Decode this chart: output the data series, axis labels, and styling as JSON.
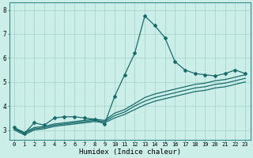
{
  "xlabel": "Humidex (Indice chaleur)",
  "bg_color": "#cceee8",
  "line_color": "#1a6b6b",
  "grid_color": "#aad5d0",
  "xlim": [
    -0.5,
    23.5
  ],
  "ylim": [
    2.6,
    8.3
  ],
  "xticks": [
    0,
    1,
    2,
    3,
    4,
    5,
    6,
    7,
    8,
    9,
    10,
    11,
    12,
    13,
    14,
    15,
    16,
    17,
    18,
    19,
    20,
    21,
    22,
    23
  ],
  "yticks": [
    3,
    4,
    5,
    6,
    7,
    8
  ],
  "series1_x": [
    0,
    1,
    2,
    3,
    4,
    5,
    6,
    7,
    8,
    9,
    10,
    11,
    12,
    13,
    14,
    15,
    16,
    17,
    18,
    19,
    20,
    21,
    22,
    23
  ],
  "series1_y": [
    3.1,
    2.85,
    3.3,
    3.2,
    3.5,
    3.55,
    3.55,
    3.5,
    3.45,
    3.25,
    4.4,
    5.3,
    6.2,
    7.75,
    7.35,
    6.85,
    5.85,
    5.5,
    5.35,
    5.3,
    5.25,
    5.35,
    5.5,
    5.35
  ],
  "series2_x": [
    0,
    1,
    2,
    3,
    4,
    5,
    6,
    7,
    8,
    9,
    10,
    11,
    12,
    13,
    14,
    15,
    16,
    17,
    18,
    19,
    20,
    21,
    22,
    23
  ],
  "series2_y": [
    3.1,
    2.9,
    3.1,
    3.15,
    3.25,
    3.3,
    3.35,
    3.4,
    3.45,
    3.4,
    3.7,
    3.85,
    4.1,
    4.35,
    4.5,
    4.6,
    4.7,
    4.8,
    4.9,
    4.95,
    5.05,
    5.1,
    5.2,
    5.3
  ],
  "series3_x": [
    0,
    1,
    2,
    3,
    4,
    5,
    6,
    7,
    8,
    9,
    10,
    11,
    12,
    13,
    14,
    15,
    16,
    17,
    18,
    19,
    20,
    21,
    22,
    23
  ],
  "series3_y": [
    3.05,
    2.85,
    3.05,
    3.1,
    3.2,
    3.25,
    3.3,
    3.35,
    3.4,
    3.35,
    3.6,
    3.75,
    4.0,
    4.2,
    4.35,
    4.45,
    4.55,
    4.65,
    4.75,
    4.8,
    4.9,
    4.95,
    5.05,
    5.15
  ],
  "series4_x": [
    0,
    1,
    2,
    3,
    4,
    5,
    6,
    7,
    8,
    9,
    10,
    11,
    12,
    13,
    14,
    15,
    16,
    17,
    18,
    19,
    20,
    21,
    22,
    23
  ],
  "series4_y": [
    3.0,
    2.8,
    3.0,
    3.05,
    3.15,
    3.2,
    3.25,
    3.3,
    3.35,
    3.3,
    3.5,
    3.65,
    3.85,
    4.05,
    4.2,
    4.3,
    4.4,
    4.5,
    4.6,
    4.65,
    4.75,
    4.8,
    4.9,
    5.0
  ]
}
